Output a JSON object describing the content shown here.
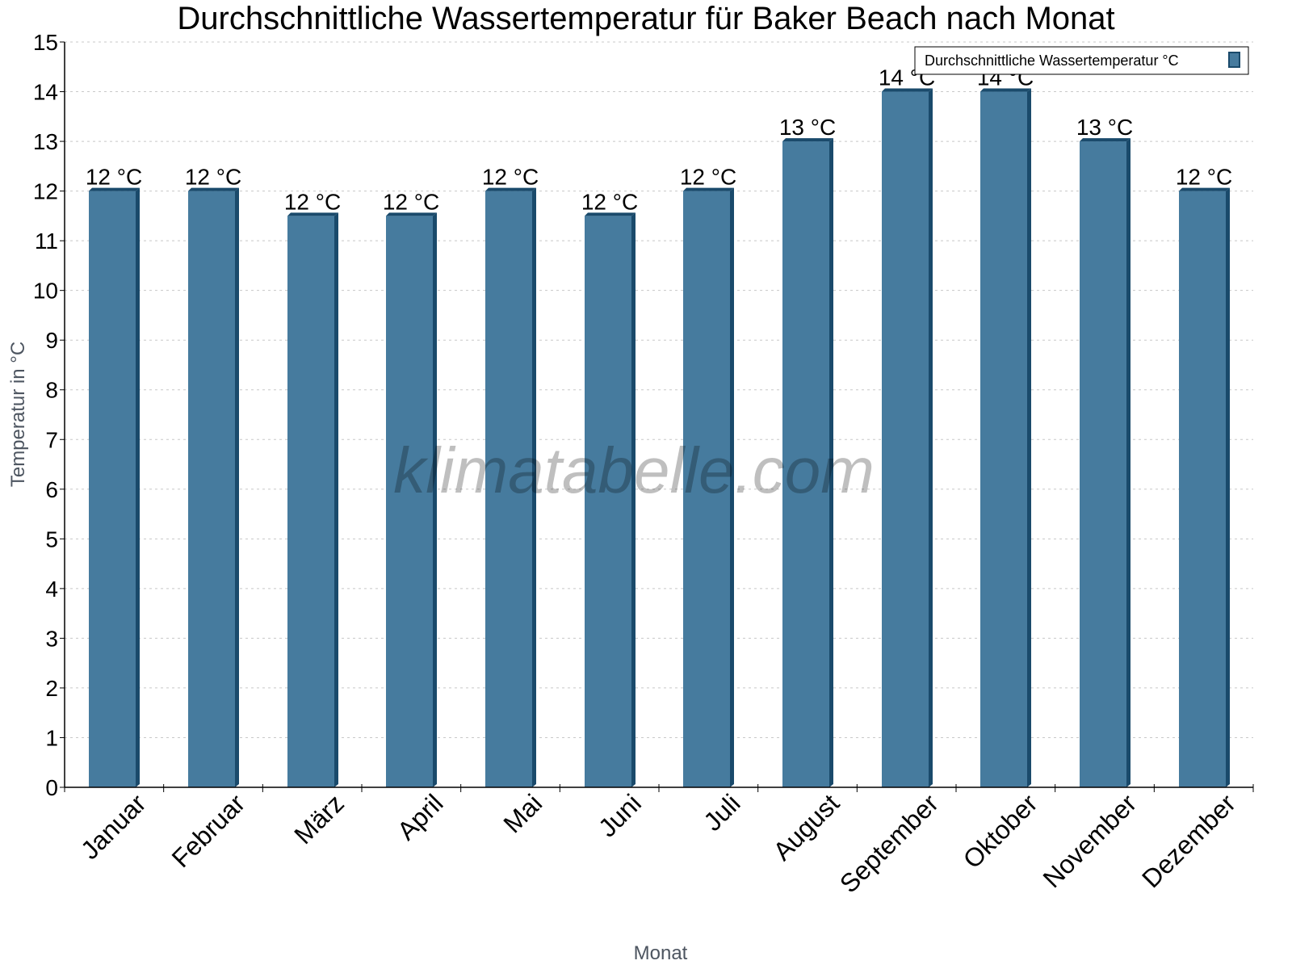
{
  "chart_data": {
    "type": "bar",
    "title": "Durchschnittliche Wassertemperatur für Baker Beach nach Monat",
    "xlabel": "Monat",
    "ylabel": "Temperatur in °C",
    "categories": [
      "Januar",
      "Februar",
      "März",
      "April",
      "Mai",
      "Juni",
      "Juli",
      "August",
      "September",
      "Oktober",
      "November",
      "Dezember"
    ],
    "series": [
      {
        "name": "Durchschnittliche Wassertemperatur °C",
        "values": [
          12,
          12,
          11.5,
          11.5,
          12,
          11.5,
          12,
          13,
          14,
          14,
          13,
          12
        ],
        "labels": [
          "12 °C",
          "12 °C",
          "12 °C",
          "12 °C",
          "12 °C",
          "12 °C",
          "12 °C",
          "13 °C",
          "14 °C",
          "14 °C",
          "13 °C",
          "12 °C"
        ],
        "color": "#467b9e",
        "shade_color": "#1a4a6b"
      }
    ],
    "ylim": [
      0,
      15
    ],
    "yticks": [
      0,
      1,
      2,
      3,
      4,
      5,
      6,
      7,
      8,
      9,
      10,
      11,
      12,
      13,
      14,
      15
    ],
    "grid": true,
    "legend_position": "top-right",
    "watermark": "klimatabelle.com"
  }
}
